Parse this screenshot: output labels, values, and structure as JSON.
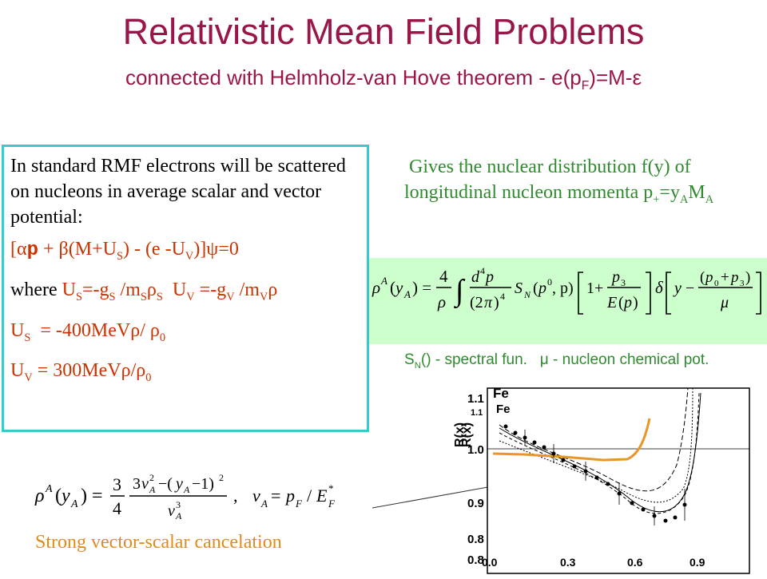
{
  "title": "Relativistic Mean Field Problems",
  "subtitle": "connected with Helmholz-van Hove theorem - e(p F )=M-ε",
  "left": {
    "intro": "In standard RMF electrons will be scattered on nucleons in average scalar and vector potential:",
    "dirac": "[αp + β(M+U_S) - (e -U_V)]ψ=0",
    "where_word": "where",
    "us_def": "U_S=-g_S /m_Sρ_S  U_V =-g_V /m_Vρ",
    "us_value": "U_S  = -400MeVρ/ ρ_0",
    "uv_value": "U_V = 300MeVρ/ρ_0"
  },
  "right": {
    "text": "Gives the nuclear distribution f(y) of longitudinal nucleon momenta p+=y_A M_A",
    "caption": "S_N() - spectral fun.   μ - nucleon chemical pot."
  },
  "cancel_text": "Strong vector-scalar cancelation",
  "colors": {
    "title": "#99164a",
    "border": "#33cccc",
    "equation": "#cc3300",
    "green_text": "#2e8b2e",
    "formula_bg": "#ccffcc",
    "highlight": "#e08a1e"
  },
  "plot": {
    "label_fe": "Fe",
    "ylabel": "R(x)",
    "y_ticks": [
      "1.1",
      "1.0",
      "0.9",
      "0.8"
    ],
    "x_ticks": [
      "0.0",
      "0.3",
      "0.6",
      "0.9"
    ]
  }
}
